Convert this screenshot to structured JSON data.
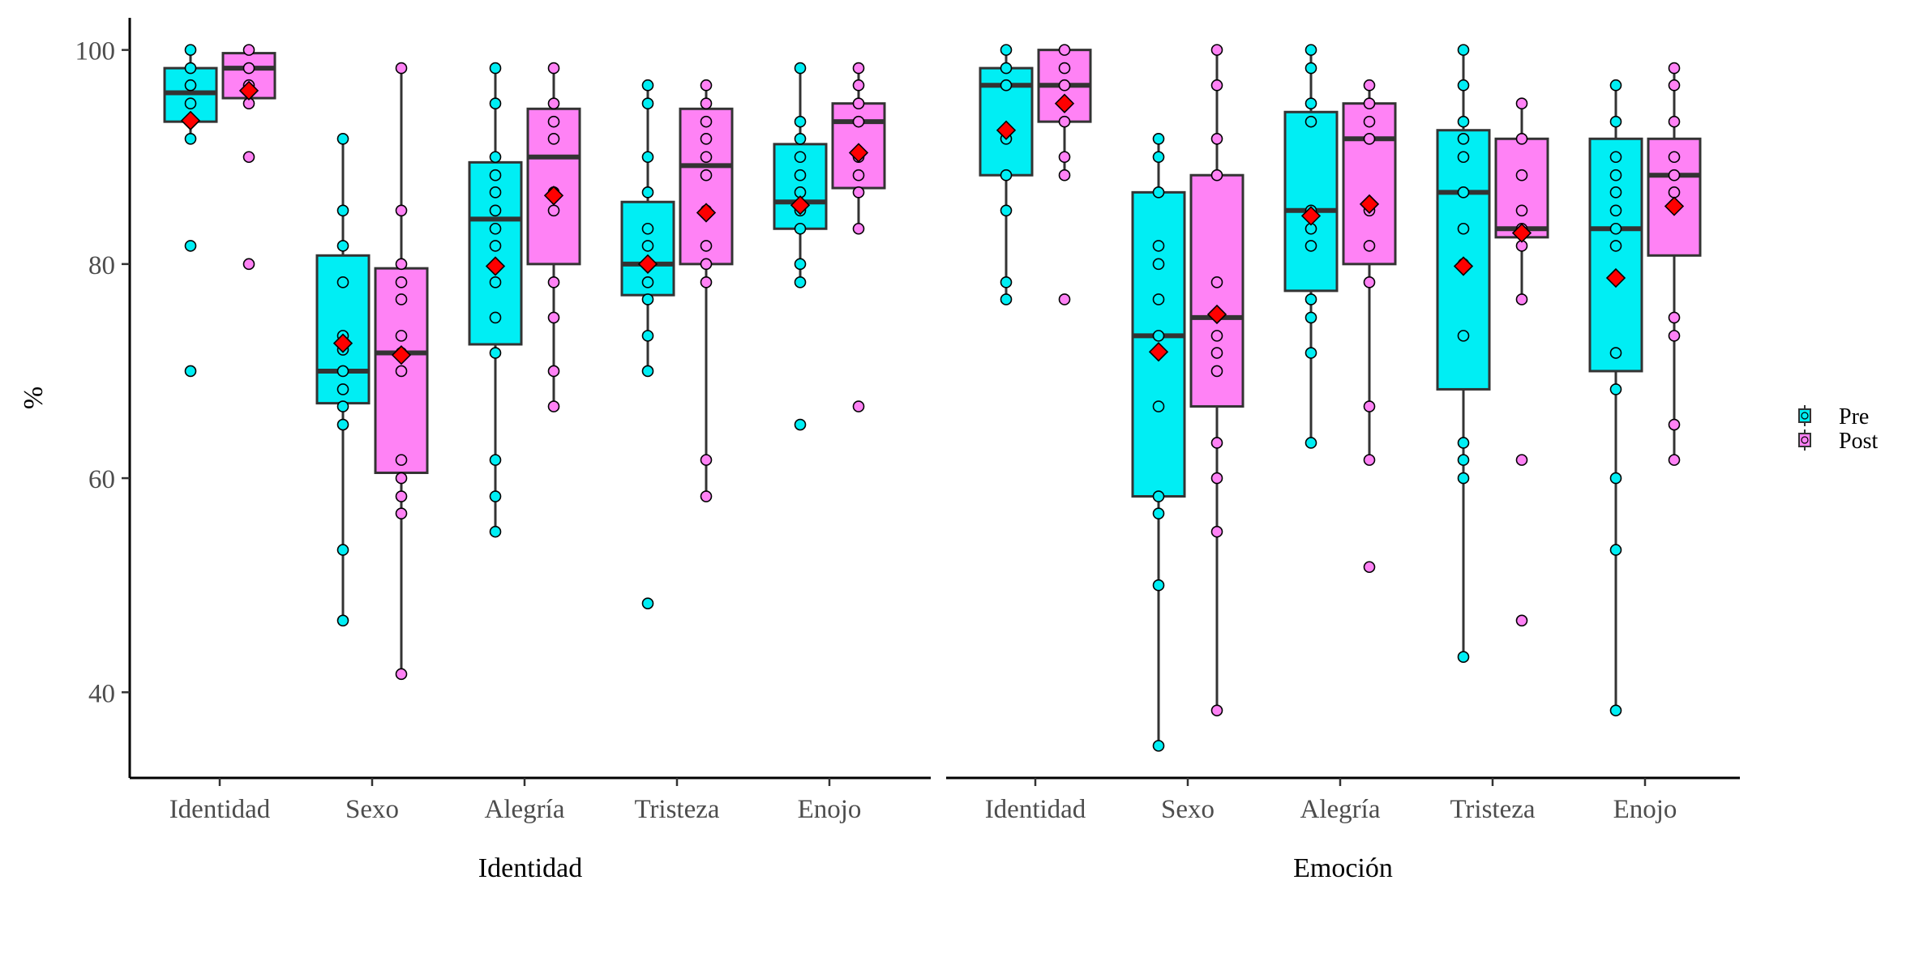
{
  "chart_data": {
    "type": "boxplot",
    "ylabel": "%",
    "ylim": [
      32,
      103
    ],
    "yticks": [
      40,
      60,
      80,
      100
    ],
    "grid": false,
    "legend_position": "right",
    "legend": [
      {
        "name": "Pre",
        "color": "#00EEF4"
      },
      {
        "name": "Post",
        "color": "#FF82F5"
      }
    ],
    "mean_marker_color": "#FF0000",
    "panels": [
      {
        "xlabel": "Identidad",
        "categories": [
          "Identidad",
          "Sexo",
          "Alegría",
          "Tristeza",
          "Enojo"
        ],
        "boxes": [
          {
            "category": "Identidad",
            "group": "Pre",
            "whisker_low": 91.7,
            "q1": 93.3,
            "median": 96.0,
            "q3": 98.3,
            "whisker_high": 100,
            "mean": 93.4,
            "points": [
              100,
              98.3,
              96.7,
              95.0,
              93.3,
              91.7,
              81.7,
              70.0
            ]
          },
          {
            "category": "Identidad",
            "group": "Post",
            "whisker_low": 95.0,
            "q1": 95.5,
            "median": 98.3,
            "q3": 99.7,
            "whisker_high": 100,
            "mean": 96.2,
            "points": [
              100,
              98.3,
              96.7,
              95.0,
              90.0,
              80.0
            ]
          },
          {
            "category": "Sexo",
            "group": "Pre",
            "whisker_low": 46.7,
            "q1": 67.0,
            "median": 70.0,
            "q3": 80.8,
            "whisker_high": 91.7,
            "mean": 72.6,
            "points": [
              91.7,
              85.0,
              81.7,
              78.3,
              73.3,
              72.0,
              70.0,
              68.3,
              66.7,
              65.0,
              53.3,
              46.7
            ]
          },
          {
            "category": "Sexo",
            "group": "Post",
            "whisker_low": 41.7,
            "q1": 60.5,
            "median": 71.7,
            "q3": 79.6,
            "whisker_high": 98.3,
            "mean": 71.5,
            "points": [
              98.3,
              85.0,
              80.0,
              78.3,
              76.7,
              73.3,
              71.7,
              70.0,
              61.7,
              60.0,
              58.3,
              56.7,
              41.7
            ]
          },
          {
            "category": "Alegría",
            "group": "Pre",
            "whisker_low": 55.0,
            "q1": 72.5,
            "median": 84.2,
            "q3": 89.5,
            "whisker_high": 98.3,
            "mean": 79.8,
            "points": [
              98.3,
              95.0,
              90.0,
              88.3,
              86.7,
              85.0,
              83.3,
              81.7,
              78.3,
              75.0,
              71.7,
              61.7,
              58.3,
              55.0
            ]
          },
          {
            "category": "Alegría",
            "group": "Post",
            "whisker_low": 66.7,
            "q1": 80.0,
            "median": 90.0,
            "q3": 94.5,
            "whisker_high": 98.3,
            "mean": 86.4,
            "points": [
              98.3,
              95.0,
              93.3,
              91.7,
              86.7,
              85.0,
              78.3,
              75.0,
              70.0,
              66.7
            ]
          },
          {
            "category": "Tristeza",
            "group": "Pre",
            "whisker_low": 70.0,
            "q1": 77.1,
            "median": 80.0,
            "q3": 85.8,
            "whisker_high": 96.7,
            "mean": 80.0,
            "points": [
              96.7,
              95.0,
              90.0,
              86.7,
              83.3,
              81.7,
              80.0,
              78.3,
              76.7,
              73.3,
              70.0,
              48.3
            ]
          },
          {
            "category": "Tristeza",
            "group": "Post",
            "whisker_low": 58.3,
            "q1": 80.0,
            "median": 89.2,
            "q3": 94.5,
            "whisker_high": 96.7,
            "mean": 84.8,
            "points": [
              96.7,
              95.0,
              93.3,
              91.7,
              90.0,
              88.3,
              85.0,
              81.7,
              80.0,
              78.3,
              61.7,
              58.3
            ]
          },
          {
            "category": "Enojo",
            "group": "Pre",
            "whisker_low": 78.3,
            "q1": 83.3,
            "median": 85.8,
            "q3": 91.2,
            "whisker_high": 98.3,
            "mean": 85.5,
            "points": [
              98.3,
              93.3,
              91.7,
              90.0,
              88.3,
              86.7,
              85.0,
              83.3,
              80.0,
              78.3,
              65.0
            ]
          },
          {
            "category": "Enojo",
            "group": "Post",
            "whisker_low": 83.3,
            "q1": 87.1,
            "median": 93.3,
            "q3": 95.0,
            "whisker_high": 98.3,
            "mean": 90.4,
            "points": [
              98.3,
              96.7,
              95.0,
              93.3,
              90.0,
              88.3,
              86.7,
              83.3,
              66.7
            ]
          }
        ]
      },
      {
        "xlabel": "Emoción",
        "categories": [
          "Identidad",
          "Sexo",
          "Alegría",
          "Tristeza",
          "Enojo"
        ],
        "boxes": [
          {
            "category": "Identidad",
            "group": "Pre",
            "whisker_low": 76.7,
            "q1": 88.3,
            "median": 96.7,
            "q3": 98.3,
            "whisker_high": 100,
            "mean": 92.5,
            "points": [
              100,
              98.3,
              96.7,
              91.7,
              88.3,
              85.0,
              78.3,
              76.7
            ]
          },
          {
            "category": "Identidad",
            "group": "Post",
            "whisker_low": 88.3,
            "q1": 93.3,
            "median": 96.7,
            "q3": 100,
            "whisker_high": 100,
            "mean": 95.0,
            "points": [
              100,
              98.3,
              96.7,
              93.3,
              90.0,
              88.3,
              76.7
            ]
          },
          {
            "category": "Sexo",
            "group": "Pre",
            "whisker_low": 35.0,
            "q1": 58.3,
            "median": 73.3,
            "q3": 86.7,
            "whisker_high": 91.7,
            "mean": 71.8,
            "points": [
              91.7,
              90.0,
              86.7,
              81.7,
              80.0,
              76.7,
              73.3,
              66.7,
              58.3,
              56.7,
              50.0,
              35.0
            ]
          },
          {
            "category": "Sexo",
            "group": "Post",
            "whisker_low": 38.3,
            "q1": 66.7,
            "median": 75.0,
            "q3": 88.3,
            "whisker_high": 100,
            "mean": 75.3,
            "points": [
              100,
              96.7,
              91.7,
              88.3,
              78.3,
              73.3,
              71.7,
              70.0,
              63.3,
              60.0,
              55.0,
              38.3
            ]
          },
          {
            "category": "Alegría",
            "group": "Pre",
            "whisker_low": 63.3,
            "q1": 77.5,
            "median": 85.0,
            "q3": 94.2,
            "whisker_high": 100,
            "mean": 84.5,
            "points": [
              100,
              98.3,
              95.0,
              93.3,
              85.0,
              83.3,
              81.7,
              76.7,
              75.0,
              71.7,
              63.3
            ]
          },
          {
            "category": "Alegría",
            "group": "Post",
            "whisker_low": 61.7,
            "q1": 80.0,
            "median": 91.7,
            "q3": 95.0,
            "whisker_high": 96.7,
            "mean": 85.6,
            "points": [
              96.7,
              95.0,
              93.3,
              91.7,
              85.0,
              81.7,
              78.3,
              66.7,
              61.7,
              51.7
            ]
          },
          {
            "category": "Tristeza",
            "group": "Pre",
            "whisker_low": 43.3,
            "q1": 68.3,
            "median": 86.7,
            "q3": 92.5,
            "whisker_high": 100,
            "mean": 79.8,
            "points": [
              100,
              96.7,
              93.3,
              91.7,
              90.0,
              86.7,
              83.3,
              80.0,
              73.3,
              63.3,
              61.7,
              60.0,
              43.3
            ]
          },
          {
            "category": "Tristeza",
            "group": "Post",
            "whisker_low": 76.7,
            "q1": 82.5,
            "median": 83.3,
            "q3": 91.7,
            "whisker_high": 95.0,
            "mean": 82.9,
            "points": [
              95.0,
              91.7,
              88.3,
              85.0,
              83.3,
              81.7,
              76.7,
              61.7,
              46.7
            ]
          },
          {
            "category": "Enojo",
            "group": "Pre",
            "whisker_low": 38.3,
            "q1": 70.0,
            "median": 83.3,
            "q3": 91.7,
            "whisker_high": 96.7,
            "mean": 78.7,
            "points": [
              96.7,
              93.3,
              90.0,
              88.3,
              86.7,
              85.0,
              83.3,
              81.7,
              71.7,
              68.3,
              60.0,
              53.3,
              38.3
            ]
          },
          {
            "category": "Enojo",
            "group": "Post",
            "whisker_low": 61.7,
            "q1": 80.8,
            "median": 88.3,
            "q3": 91.7,
            "whisker_high": 98.3,
            "mean": 85.4,
            "points": [
              98.3,
              96.7,
              93.3,
              90.0,
              88.3,
              86.7,
              75.0,
              73.3,
              65.0,
              61.7
            ]
          }
        ]
      }
    ]
  }
}
